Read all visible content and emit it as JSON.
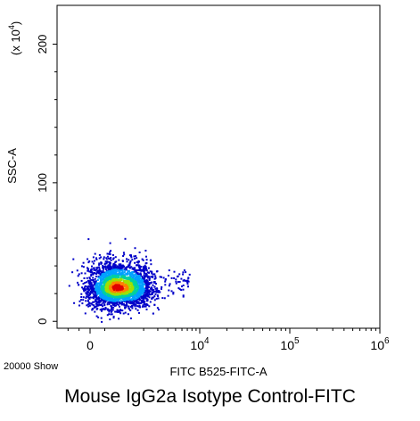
{
  "chart_data": {
    "type": "scatter",
    "subtype": "flow-cytometry-density-dot-plot",
    "x_axis": {
      "label": "FITC B525-FITC-A",
      "scale": "biexponential",
      "tick_labels": [
        {
          "value": 0,
          "text": "0"
        },
        {
          "value": 10000,
          "base": "10",
          "exp": "4"
        },
        {
          "value": 100000,
          "base": "10",
          "exp": "5"
        },
        {
          "value": 1000000,
          "base": "10",
          "exp": "6"
        }
      ],
      "range": [
        -1500,
        1000000
      ]
    },
    "y_axis": {
      "label": "SSC-A",
      "multiplier_base": "(x 10",
      "multiplier_exp": "4",
      "multiplier_close": ")",
      "scale": "linear",
      "tick_labels": [
        {
          "value": 0,
          "text": "0"
        },
        {
          "value": 100,
          "text": "100"
        },
        {
          "value": 200,
          "text": "200"
        }
      ],
      "range": [
        -5,
        228
      ]
    },
    "events_label": "20000 Show",
    "population": {
      "x_center": 900,
      "x_spread": 700,
      "y_center": 24,
      "y_spread": 9,
      "n_points": 2600
    },
    "colors": {
      "low": "#0000c8",
      "mid_low": "#00a0ff",
      "mid": "#00d0a0",
      "mid_high": "#a0e000",
      "high": "#ff8000",
      "peak": "#e00000"
    }
  },
  "caption": "Mouse IgG2a  Isotype Control-FITC"
}
